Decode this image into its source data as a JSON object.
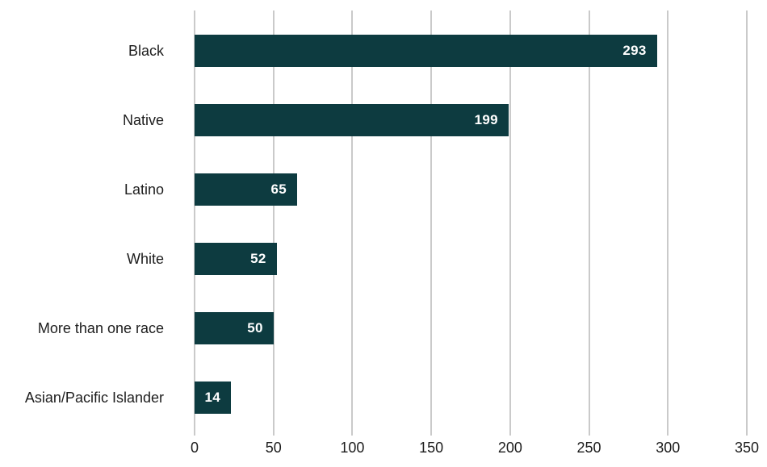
{
  "chart_data": {
    "type": "bar",
    "orientation": "horizontal",
    "title": "",
    "xlabel": "",
    "ylabel": "",
    "categories": [
      "Black",
      "Native",
      "Latino",
      "White",
      "More than one race",
      "Asian/Pacific Islander"
    ],
    "values": [
      293,
      199,
      65,
      52,
      50,
      14
    ],
    "xlim": [
      0,
      350
    ],
    "xticks": [
      0,
      50,
      100,
      150,
      200,
      250,
      300,
      350
    ],
    "grid": true,
    "legend": false,
    "colors": {
      "bar": "#0d3b40",
      "gridline": "#949494",
      "category_label": "#1d1d1d",
      "tick_label": "#1d1d1d",
      "value_label": "#ffffff",
      "background": "#ffffff"
    }
  }
}
